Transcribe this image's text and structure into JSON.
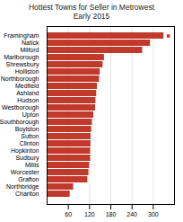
{
  "chart_data": {
    "type": "bar",
    "orientation": "horizontal",
    "title": "Hottest Towns for Seller in Metrowest\nEarly 2015",
    "categories": [
      "Charlton",
      "Northbridge",
      "Grafton",
      "Worcester",
      "Millis",
      "Sudbury",
      "Hopkinton",
      "Clinton",
      "Sutton",
      "Boylston",
      "Southborough",
      "Upton",
      "Westborough",
      "Hudson",
      "Ashland",
      "Medfield",
      "Northborough",
      "Holliston",
      "Shrewsbury",
      "Marlborough",
      "Milford",
      "Natick",
      "Framingham"
    ],
    "values": [
      65,
      75,
      115,
      118,
      120,
      123,
      123,
      124,
      124,
      126,
      128,
      132,
      137,
      138,
      140,
      142,
      148,
      150,
      158,
      162,
      270,
      292,
      330
    ],
    "color": "#c0392b",
    "marker": "square",
    "xlim": [
      0,
      360
    ],
    "xticks": [
      60,
      120,
      180,
      240,
      300
    ],
    "grid": true
  }
}
